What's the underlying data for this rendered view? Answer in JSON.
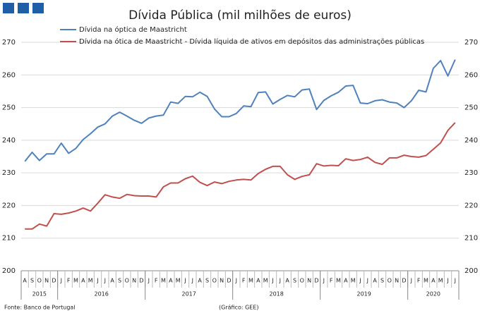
{
  "chart_data": {
    "type": "line",
    "title": "Dívida Pública (mil milhões de euros)",
    "source": "Fonte: Banco de Portugal",
    "credit": "(Gráfico: GEE)",
    "categories": [
      "A",
      "S",
      "O",
      "N",
      "D",
      "J",
      "F",
      "M",
      "A",
      "M",
      "J",
      "J",
      "A",
      "S",
      "O",
      "N",
      "D",
      "J",
      "F",
      "M",
      "A",
      "M",
      "J",
      "J",
      "A",
      "S",
      "O",
      "N",
      "D",
      "J",
      "F",
      "M",
      "A",
      "M",
      "J",
      "J",
      "A",
      "S",
      "O",
      "N",
      "D",
      "J",
      "F",
      "M",
      "A",
      "M",
      "J",
      "J",
      "A",
      "S",
      "O",
      "N",
      "D",
      "J",
      "F",
      "M",
      "A",
      "M",
      "J",
      "J"
    ],
    "years": [
      "2015",
      "2016",
      "2017",
      "2018",
      "2019",
      "2020"
    ],
    "series": [
      {
        "name": "Dívida na óptica de Maastricht",
        "color": "#4f81bd",
        "values": [
          233.5,
          236.3,
          233.8,
          235.8,
          235.8,
          239.1,
          236.0,
          237.5,
          240.2,
          242.0,
          244.0,
          245.0,
          247.4,
          248.6,
          247.4,
          246.1,
          245.2,
          246.8,
          247.4,
          247.7,
          251.7,
          251.3,
          253.4,
          253.3,
          254.7,
          253.4,
          249.6,
          247.2,
          247.2,
          248.2,
          250.5,
          250.3,
          254.6,
          254.8,
          251.1,
          252.5,
          253.7,
          253.3,
          255.4,
          255.7,
          249.4,
          252.2,
          253.6,
          254.7,
          256.6,
          256.8,
          251.4,
          251.2,
          252.1,
          252.4,
          251.7,
          251.4,
          250.0,
          252.1,
          255.3,
          254.8,
          262.0,
          264.4,
          259.7,
          264.7
        ]
      },
      {
        "name": "Dívida na ótica de Maastricht - Dívida líquida de ativos em depósitos das administrações públicas",
        "color": "#c0504d",
        "values": [
          212.8,
          212.8,
          214.3,
          213.7,
          217.5,
          217.3,
          217.7,
          218.3,
          219.2,
          218.3,
          220.7,
          223.3,
          222.6,
          222.2,
          223.4,
          223.0,
          222.9,
          222.9,
          222.6,
          225.7,
          226.9,
          226.9,
          228.2,
          229.0,
          227.1,
          226.1,
          227.2,
          226.7,
          227.4,
          227.8,
          228.0,
          227.8,
          229.8,
          231.1,
          232.0,
          232.0,
          229.4,
          228.0,
          228.9,
          229.4,
          232.8,
          232.1,
          232.3,
          232.2,
          234.3,
          233.8,
          234.1,
          234.8,
          233.2,
          232.6,
          234.6,
          234.6,
          235.4,
          235.0,
          234.8,
          235.3,
          237.2,
          239.2,
          243.0,
          245.4
        ]
      }
    ],
    "ylim": [
      200,
      270
    ],
    "yticks": [
      200,
      210,
      220,
      230,
      240,
      250,
      260,
      270
    ],
    "y2lim": [
      200,
      270
    ],
    "y2ticks": [
      200,
      210,
      220,
      230,
      240,
      250,
      260,
      270
    ],
    "grid": true
  }
}
